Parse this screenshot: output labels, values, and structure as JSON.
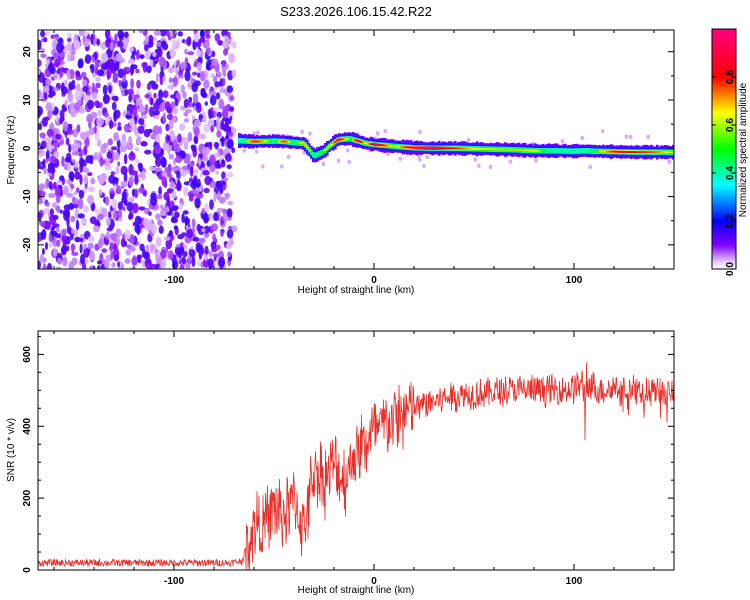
{
  "title": "S233.2026.106.15.42.R22",
  "chart_data": [
    {
      "type": "heatmap",
      "name": "spectrogram",
      "xlabel": "Height of straight line (km)",
      "ylabel": "Frequency (Hz)",
      "xlim": [
        -168,
        150
      ],
      "ylim": [
        -25,
        24.5
      ],
      "x_ticks": [
        -100,
        0,
        100
      ],
      "y_ticks": [
        -20,
        -10,
        0,
        10,
        20
      ],
      "noise_region_x": [
        -168,
        -70
      ],
      "signal_ridge": {
        "x": [
          -68,
          -60,
          -50,
          -45,
          -40,
          -35,
          -30,
          -25,
          -22,
          -18,
          -12,
          -8,
          -4,
          0,
          10,
          20,
          30,
          40,
          50,
          60,
          70,
          80,
          90,
          100,
          105,
          110,
          120,
          130,
          140,
          150
        ],
        "frequency_hz": [
          1.6,
          1.4,
          1.5,
          1.4,
          1.2,
          1.0,
          -1.6,
          -0.6,
          0.6,
          1.8,
          2.0,
          1.5,
          1.0,
          0.8,
          0.4,
          0.1,
          0.0,
          0.0,
          -0.1,
          -0.2,
          -0.3,
          -0.5,
          -0.5,
          -0.6,
          -0.5,
          -0.6,
          -0.7,
          -0.8,
          -0.8,
          -0.8
        ],
        "amplitude": [
          0.3,
          0.85,
          0.5,
          0.8,
          0.5,
          0.7,
          0.5,
          0.6,
          0.6,
          0.9,
          0.55,
          0.9,
          0.6,
          0.95,
          0.6,
          0.9,
          1.0,
          0.8,
          0.65,
          0.6,
          0.6,
          0.65,
          0.5,
          0.45,
          0.5,
          0.55,
          0.8,
          0.8,
          0.75,
          0.6
        ]
      },
      "colorbar": {
        "label": "Normalized spectral amplitude",
        "range": [
          0.0,
          1.0
        ],
        "ticks": [
          0.0,
          0.2,
          0.4,
          0.6,
          0.8
        ],
        "tick_labels": [
          "0.0",
          "0.2",
          "0.4",
          "0.6",
          "0.8"
        ],
        "colors": [
          "#ffffff",
          "#8000ff",
          "#0000ff",
          "#00ffff",
          "#00ff00",
          "#ffff00",
          "#ff0000",
          "#ff0080"
        ]
      }
    },
    {
      "type": "line",
      "name": "snr",
      "xlabel": "Height of straight line (km)",
      "ylabel": "SNR (10 * v/v)",
      "xlim": [
        -168,
        150
      ],
      "ylim": [
        0,
        665
      ],
      "x_ticks": [
        -100,
        0,
        100
      ],
      "y_ticks": [
        0,
        200,
        400,
        600
      ],
      "line_color": "#e8302a",
      "series": [
        {
          "name": "SNR",
          "x": [
            -168,
            -72,
            -66,
            -62,
            -58,
            -55,
            -50,
            -45,
            -40,
            -35,
            -30,
            -25,
            -20,
            -15,
            -10,
            -5,
            0,
            5,
            10,
            20,
            30,
            40,
            50,
            60,
            70,
            80,
            90,
            100,
            104,
            106,
            108,
            112,
            120,
            130,
            140,
            150
          ],
          "values": [
            20,
            20,
            25,
            90,
            140,
            120,
            170,
            150,
            200,
            110,
            280,
            250,
            290,
            250,
            320,
            350,
            380,
            400,
            420,
            450,
            470,
            485,
            490,
            495,
            500,
            500,
            500,
            505,
            520,
            460,
            520,
            500,
            505,
            500,
            495,
            500
          ]
        }
      ]
    }
  ]
}
